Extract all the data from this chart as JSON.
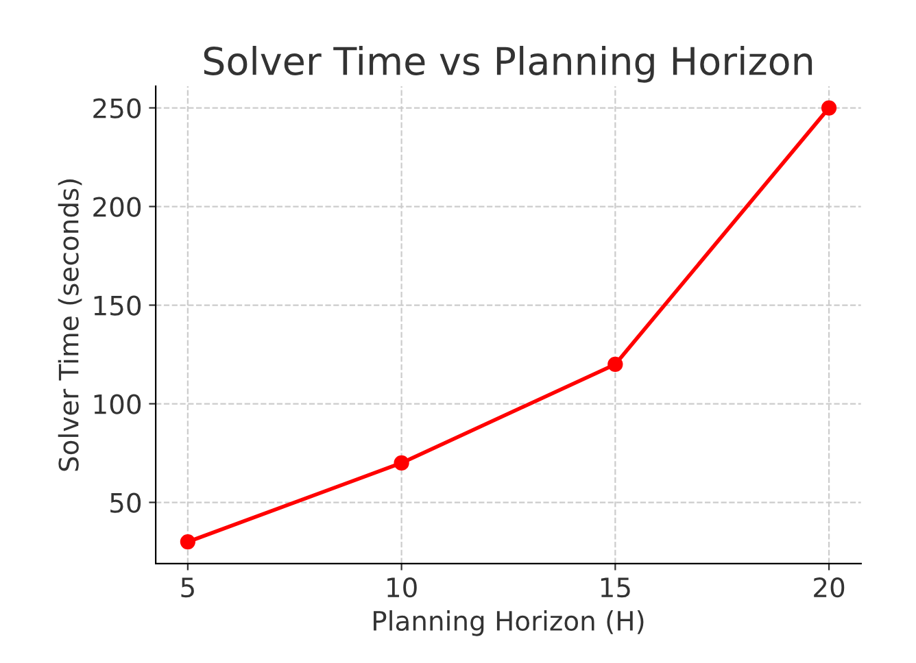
{
  "chart_data": {
    "type": "line",
    "title": "Solver Time vs Planning Horizon",
    "xlabel": "Planning Horizon (H)",
    "ylabel": "Solver Time (seconds)",
    "x": [
      5,
      10,
      15,
      20
    ],
    "series": [
      {
        "color": "#ff0000",
        "values": [
          30,
          70,
          120,
          250
        ]
      }
    ],
    "xlim": [
      4.25,
      20.75
    ],
    "ylim": [
      19,
      261
    ],
    "xticks": [
      5,
      10,
      15,
      20
    ],
    "yticks": [
      50,
      100,
      150,
      200,
      250
    ],
    "grid": true,
    "marker": "circle",
    "line_style": "solid"
  }
}
